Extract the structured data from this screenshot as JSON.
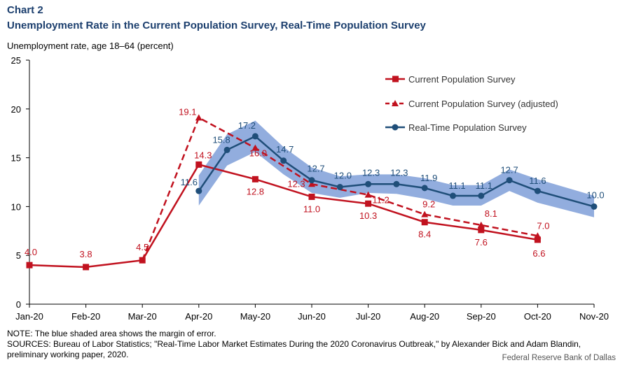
{
  "header": {
    "kicker": "Chart 2",
    "title": "Unemployment Rate in the Current Population Survey, Real-Time Population Survey",
    "ylabel": "Unemployment rate, age 18–64 (percent)"
  },
  "footer": {
    "note": "NOTE: The blue shaded area shows the margin of error.",
    "sources": "SOURCES: Bureau of Labor Statistics; \"Real-Time Labor Market Estimates During the 2020 Coronavirus Outbreak,\" by Alexander Bick and Adam Blandin, preliminary working paper, 2020.",
    "credit": "Federal Reserve Bank of Dallas"
  },
  "colors": {
    "cps": "#c1121f",
    "rps": "#1f4e79",
    "band": "#7f9fd8",
    "title": "#1c3f6e"
  },
  "chart_data": {
    "type": "line",
    "ylim": [
      0,
      25
    ],
    "yticks": [
      0,
      5,
      10,
      15,
      20,
      25
    ],
    "xlim": [
      0,
      10
    ],
    "xticks": [
      {
        "pos": 0,
        "label": "Jan-20"
      },
      {
        "pos": 1,
        "label": "Feb-20"
      },
      {
        "pos": 2,
        "label": "Mar-20"
      },
      {
        "pos": 3,
        "label": "Apr-20"
      },
      {
        "pos": 4,
        "label": "May-20"
      },
      {
        "pos": 5,
        "label": "Jun-20"
      },
      {
        "pos": 6,
        "label": "Jul-20"
      },
      {
        "pos": 7,
        "label": "Aug-20"
      },
      {
        "pos": 8,
        "label": "Sep-20"
      },
      {
        "pos": 9,
        "label": "Oct-20"
      },
      {
        "pos": 10,
        "label": "Nov-20"
      }
    ],
    "legend_position": "top-right",
    "grid": false,
    "series": [
      {
        "name": "Current Population Survey",
        "style": "solid",
        "marker": "square",
        "x": [
          0,
          1,
          2,
          3,
          4,
          5,
          6,
          7,
          8,
          9
        ],
        "y": [
          4.0,
          3.8,
          4.5,
          14.3,
          12.8,
          11.0,
          10.3,
          8.4,
          7.6,
          6.6
        ],
        "labels": [
          "4.0",
          "3.8",
          "4.5",
          "14.3",
          "12.8",
          "11.0",
          "10.3",
          "8.4",
          "7.6",
          "6.6"
        ]
      },
      {
        "name": "Current Population Survey (adjusted)",
        "style": "dashed",
        "marker": "triangle",
        "x": [
          2,
          3,
          4,
          5,
          6,
          7,
          8,
          9
        ],
        "y": [
          4.5,
          19.1,
          16.0,
          12.3,
          11.2,
          9.2,
          8.1,
          7.0
        ],
        "labels": [
          "",
          "19.1",
          "16.0",
          "12.3",
          "11.2",
          "9.2",
          "8.1",
          "7.0"
        ]
      },
      {
        "name": "Real-Time Population Survey",
        "style": "solid",
        "marker": "circle",
        "x": [
          3,
          3.5,
          4,
          4.5,
          5,
          5.5,
          6,
          6.5,
          7,
          7.5,
          8,
          8.5,
          9,
          10
        ],
        "y": [
          11.6,
          15.8,
          17.2,
          14.7,
          12.7,
          12.0,
          12.3,
          12.3,
          11.9,
          11.1,
          11.1,
          12.7,
          11.6,
          10.0
        ],
        "labels": [
          "11.6",
          "15.8",
          "17.2",
          "14.7",
          "12.7",
          "12.0",
          "12.3",
          "12.3",
          "11.9",
          "11.1",
          "11.1",
          "12.7",
          "11.6",
          "10.0"
        ],
        "band_low": [
          10.1,
          14.2,
          15.6,
          13.3,
          11.4,
          10.9,
          11.4,
          11.3,
          10.8,
          10.1,
          10.1,
          11.6,
          10.4,
          8.9
        ],
        "band_high": [
          13.2,
          17.4,
          18.8,
          16.1,
          14.0,
          13.1,
          13.3,
          13.3,
          12.9,
          12.2,
          12.2,
          13.8,
          12.8,
          11.1
        ]
      }
    ]
  }
}
